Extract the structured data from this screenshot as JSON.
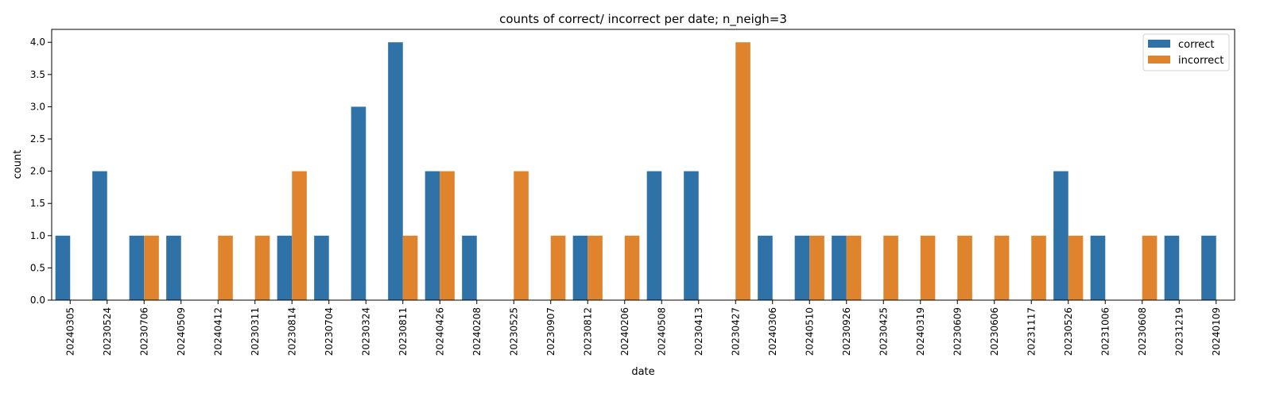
{
  "chart_data": {
    "type": "bar",
    "title": "counts of correct/ incorrect per date; n_neigh=3",
    "xlabel": "date",
    "ylabel": "count",
    "ylim": [
      0,
      4.2
    ],
    "yticks": [
      "0.0",
      "0.5",
      "1.0",
      "1.5",
      "2.0",
      "2.5",
      "3.0",
      "3.5",
      "4.0"
    ],
    "grid": false,
    "legend_position": "top-right",
    "categories": [
      "20240305",
      "20230524",
      "20230706",
      "20240509",
      "20240412",
      "20230311",
      "20230814",
      "20230704",
      "20230324",
      "20230811",
      "20240426",
      "20240208",
      "20230525",
      "20230907",
      "20230812",
      "20240206",
      "20240508",
      "20230413",
      "20230427",
      "20240306",
      "20240510",
      "20230926",
      "20230425",
      "20240319",
      "20230609",
      "20230606",
      "20231117",
      "20230526",
      "20231006",
      "20230608",
      "20231219",
      "20240109"
    ],
    "series": [
      {
        "name": "correct",
        "color": "#2e72a8",
        "values": [
          1,
          2,
          1,
          1,
          0,
          0,
          1,
          1,
          3,
          4,
          2,
          1,
          0,
          0,
          1,
          0,
          2,
          2,
          0,
          1,
          1,
          1,
          0,
          0,
          0,
          0,
          0,
          2,
          1,
          0,
          1,
          1
        ]
      },
      {
        "name": "incorrect",
        "color": "#e0832d",
        "values": [
          0,
          0,
          1,
          0,
          1,
          1,
          2,
          0,
          0,
          1,
          2,
          0,
          2,
          1,
          1,
          1,
          0,
          0,
          4,
          0,
          1,
          1,
          1,
          1,
          1,
          1,
          1,
          1,
          0,
          1,
          0,
          0
        ]
      }
    ]
  }
}
